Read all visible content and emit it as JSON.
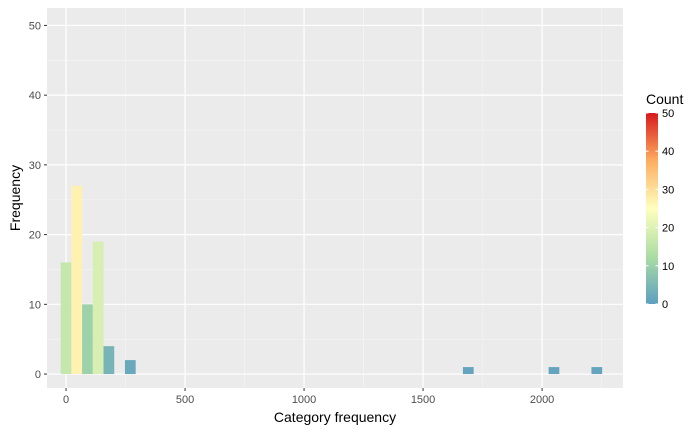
{
  "chart_data": {
    "type": "bar",
    "xlabel": "Category frequency",
    "ylabel": "Frequency",
    "xlim": [
      -80,
      2340
    ],
    "ylim": [
      -2,
      52.5
    ],
    "x_ticks": [
      0,
      500,
      1000,
      1500,
      2000
    ],
    "y_ticks": [
      0,
      10,
      20,
      30,
      40,
      50
    ],
    "bin_width": 45,
    "bars": [
      {
        "x": 0,
        "value": 16
      },
      {
        "x": 45,
        "value": 27
      },
      {
        "x": 90,
        "value": 10
      },
      {
        "x": 135,
        "value": 19
      },
      {
        "x": 180,
        "value": 4
      },
      {
        "x": 270,
        "value": 2
      },
      {
        "x": 1690,
        "value": 1
      },
      {
        "x": 2050,
        "value": 1
      },
      {
        "x": 2230,
        "value": 1
      }
    ],
    "legend": {
      "title": "Count",
      "position": "right",
      "ticks": [
        0,
        10,
        20,
        30,
        40,
        50
      ],
      "range": [
        0,
        50
      ],
      "colors": [
        "#5e9fc0",
        "#abdda4",
        "#ffffbf",
        "#fdae61",
        "#d7191c"
      ]
    },
    "background": "#ebebeb",
    "grid": true
  }
}
